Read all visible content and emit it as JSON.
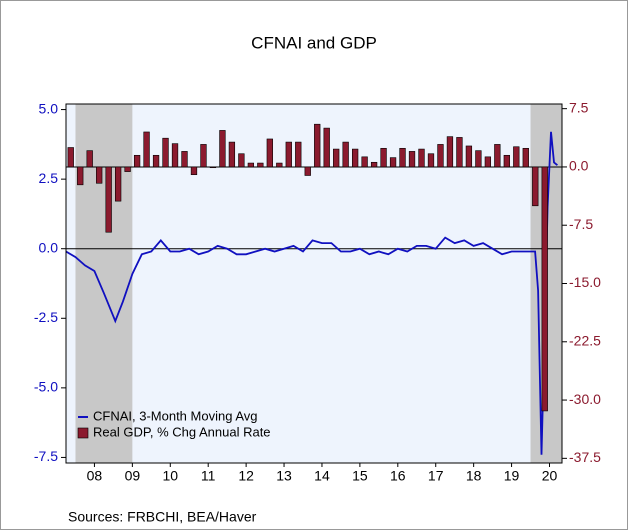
{
  "chart_data": {
    "type": "line-bar-dual",
    "title": "CFNAI and GDP",
    "source": "Sources:  FRBCHI, BEA/Haver",
    "xlim": [
      2007.75,
      2020.83
    ],
    "xticks": [
      {
        "value": 2008.5,
        "label": "08"
      },
      {
        "value": 2009.5,
        "label": "09"
      },
      {
        "value": 2010.5,
        "label": "10"
      },
      {
        "value": 2011.5,
        "label": "11"
      },
      {
        "value": 2012.5,
        "label": "12"
      },
      {
        "value": 2013.5,
        "label": "13"
      },
      {
        "value": 2014.5,
        "label": "14"
      },
      {
        "value": 2015.5,
        "label": "15"
      },
      {
        "value": 2016.5,
        "label": "16"
      },
      {
        "value": 2017.5,
        "label": "17"
      },
      {
        "value": 2018.5,
        "label": "18"
      },
      {
        "value": 2019.5,
        "label": "19"
      },
      {
        "value": 2020.5,
        "label": "20"
      }
    ],
    "ylim": [
      -7.7,
      5.2
    ],
    "yticks": [
      {
        "value": 5,
        "label": "5.0"
      },
      2.5,
      {
        "value": 0,
        "label": "0.0"
      },
      -2.5,
      {
        "value": -5,
        "label": "-5.0"
      },
      -7.5
    ],
    "y2lim": [
      -38.1,
      8.1
    ],
    "y2ticks": [
      7.5,
      {
        "value": 0,
        "label": "0.0"
      },
      -7.5,
      {
        "value": -15,
        "label": "-15.0"
      },
      -22.5,
      {
        "value": -30,
        "label": "-30.0"
      },
      -37.5
    ],
    "shaded_periods": [
      [
        2008.0,
        2009.5
      ],
      [
        2020.0,
        2020.83
      ]
    ],
    "legend": "bottom-left",
    "series": [
      {
        "name": "CFNAI, 3-Month Moving Avg",
        "kind": "line",
        "color": "#1010c0",
        "x": [
          2007.75,
          2008.0,
          2008.25,
          2008.5,
          2008.75,
          2009.05,
          2009.25,
          2009.5,
          2009.75,
          2010.0,
          2010.25,
          2010.5,
          2010.75,
          2011.0,
          2011.25,
          2011.5,
          2011.75,
          2012.0,
          2012.25,
          2012.5,
          2012.75,
          2013.0,
          2013.25,
          2013.5,
          2013.75,
          2014.0,
          2014.25,
          2014.5,
          2014.75,
          2015.0,
          2015.25,
          2015.5,
          2015.75,
          2016.0,
          2016.25,
          2016.5,
          2016.75,
          2017.0,
          2017.25,
          2017.5,
          2017.75,
          2018.0,
          2018.25,
          2018.5,
          2018.75,
          2019.0,
          2019.25,
          2019.5,
          2019.75,
          2020.0,
          2020.12,
          2020.2,
          2020.29,
          2020.37,
          2020.45,
          2020.54,
          2020.62,
          2020.71
        ],
        "values": [
          -0.1,
          -0.3,
          -0.6,
          -0.8,
          -1.6,
          -2.6,
          -1.9,
          -0.9,
          -0.2,
          -0.1,
          0.3,
          -0.1,
          -0.1,
          0.0,
          -0.2,
          -0.1,
          0.1,
          0.0,
          -0.2,
          -0.2,
          -0.1,
          0.0,
          -0.1,
          0.0,
          0.1,
          -0.1,
          0.3,
          0.2,
          0.2,
          -0.1,
          -0.1,
          0.0,
          -0.2,
          -0.1,
          -0.2,
          0.0,
          -0.1,
          0.1,
          0.1,
          0.0,
          0.4,
          0.2,
          0.3,
          0.1,
          0.2,
          0.0,
          -0.2,
          -0.1,
          -0.1,
          -0.1,
          -0.1,
          -1.5,
          -7.4,
          -3.0,
          1.5,
          4.2,
          3.1,
          3.0
        ]
      },
      {
        "name": "Real GDP, % Chg Annual Rate",
        "kind": "bar",
        "axis": "y2",
        "color": "#8b1a2e",
        "x": [
          2007.875,
          2008.125,
          2008.375,
          2008.625,
          2008.875,
          2009.125,
          2009.375,
          2009.625,
          2009.875,
          2010.125,
          2010.375,
          2010.625,
          2010.875,
          2011.125,
          2011.375,
          2011.625,
          2011.875,
          2012.125,
          2012.375,
          2012.625,
          2012.875,
          2013.125,
          2013.375,
          2013.625,
          2013.875,
          2014.125,
          2014.375,
          2014.625,
          2014.875,
          2015.125,
          2015.375,
          2015.625,
          2015.875,
          2016.125,
          2016.375,
          2016.625,
          2016.875,
          2017.125,
          2017.375,
          2017.625,
          2017.875,
          2018.125,
          2018.375,
          2018.625,
          2018.875,
          2019.125,
          2019.375,
          2019.625,
          2019.875,
          2020.125,
          2020.375
        ],
        "values": [
          2.5,
          -2.3,
          2.1,
          -2.1,
          -8.4,
          -4.4,
          -0.6,
          1.5,
          4.5,
          1.5,
          3.7,
          3.0,
          2.0,
          -1.0,
          2.9,
          -0.1,
          4.7,
          3.2,
          1.7,
          0.5,
          0.5,
          3.6,
          0.5,
          3.2,
          3.2,
          -1.1,
          5.5,
          5.0,
          2.3,
          3.2,
          2.3,
          1.3,
          0.6,
          2.4,
          1.2,
          2.4,
          2.0,
          2.3,
          1.7,
          2.9,
          3.9,
          3.8,
          2.7,
          2.1,
          1.3,
          2.9,
          1.5,
          2.6,
          2.4,
          -5.0,
          -31.4
        ]
      }
    ]
  }
}
